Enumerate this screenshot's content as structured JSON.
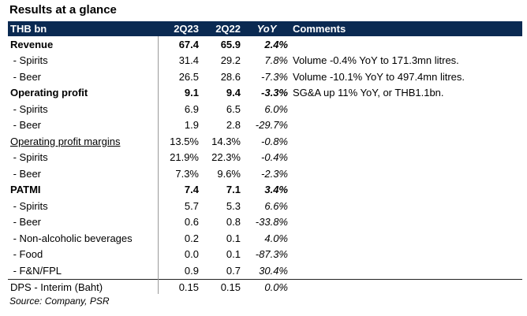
{
  "title": "Results at a glance",
  "header": {
    "label": "THB bn",
    "c1": "2Q23",
    "c2": "2Q22",
    "c3": "YoY",
    "c4": "Comments"
  },
  "rows": [
    {
      "label": "Revenue",
      "v1": "67.4",
      "v2": "65.9",
      "yoy": "2.4%",
      "comment": "",
      "bold": true
    },
    {
      "label": " - Spirits",
      "v1": "31.4",
      "v2": "29.2",
      "yoy": "7.8%",
      "comment": "Volume -0.4% YoY to 171.3mn litres."
    },
    {
      "label": " - Beer",
      "v1": "26.5",
      "v2": "28.6",
      "yoy": "-7.3%",
      "comment": "Volume -10.1% YoY to 497.4mn litres."
    },
    {
      "label": "Operating profit",
      "v1": "9.1",
      "v2": "9.4",
      "yoy": "-3.3%",
      "comment": "SG&A up 11% YoY, or THB1.1bn.",
      "bold": true
    },
    {
      "label": " - Spirits",
      "v1": "6.9",
      "v2": "6.5",
      "yoy": "6.0%",
      "comment": ""
    },
    {
      "label": " - Beer",
      "v1": "1.9",
      "v2": "2.8",
      "yoy": "-29.7%",
      "comment": ""
    },
    {
      "label": "Operating profit margins",
      "v1": "13.5%",
      "v2": "14.3%",
      "yoy": "-0.8%",
      "comment": "",
      "underline": true
    },
    {
      "label": " - Spirits",
      "v1": "21.9%",
      "v2": "22.3%",
      "yoy": "-0.4%",
      "comment": ""
    },
    {
      "label": " - Beer",
      "v1": "7.3%",
      "v2": "9.6%",
      "yoy": "-2.3%",
      "comment": ""
    },
    {
      "label": "PATMI",
      "v1": "7.4",
      "v2": "7.1",
      "yoy": "3.4%",
      "comment": "",
      "bold": true
    },
    {
      "label": " - Spirits",
      "v1": "5.7",
      "v2": "5.3",
      "yoy": "6.6%",
      "comment": ""
    },
    {
      "label": " - Beer",
      "v1": "0.6",
      "v2": "0.8",
      "yoy": "-33.8%",
      "comment": ""
    },
    {
      "label": " - Non-alcoholic beverages",
      "v1": "0.2",
      "v2": "0.1",
      "yoy": "4.0%",
      "comment": ""
    },
    {
      "label": " - Food",
      "v1": "0.0",
      "v2": "0.1",
      "yoy": "-87.3%",
      "comment": ""
    },
    {
      "label": " - F&N/FPL",
      "v1": "0.9",
      "v2": "0.7",
      "yoy": "30.4%",
      "comment": ""
    },
    {
      "label": "DPS - Interim (Baht)",
      "v1": "0.15",
      "v2": "0.15",
      "yoy": "0.0%",
      "comment": "",
      "separator": true
    }
  ],
  "source": "Source: Company, PSR",
  "colors": {
    "header_bg": "#0b2a52",
    "header_text": "#ffffff"
  }
}
